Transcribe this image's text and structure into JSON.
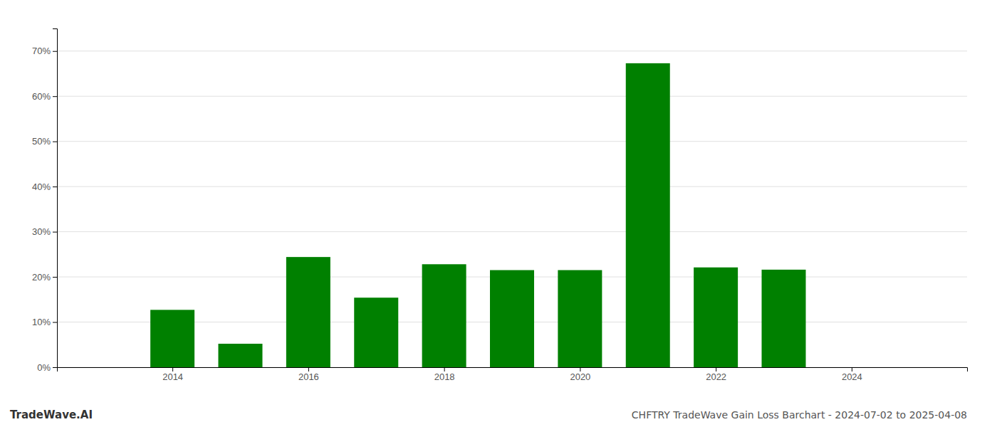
{
  "chart_data": {
    "type": "bar",
    "title": "CHFTRY TradeWave Gain Loss Barchart - 2024-07-02 to 2025-04-08",
    "annotations": [
      "TradeWave.AI"
    ],
    "x": [
      2014,
      2015,
      2016,
      2017,
      2018,
      2019,
      2020,
      2021,
      2022,
      2023
    ],
    "values": [
      0.127,
      0.052,
      0.244,
      0.154,
      0.228,
      0.215,
      0.215,
      0.673,
      0.221,
      0.216
    ],
    "color": "#008000",
    "xlim": [
      2012.3,
      2025.7
    ],
    "xticks": [
      2014,
      2016,
      2018,
      2020,
      2022,
      2024
    ],
    "ylim": [
      0,
      0.75
    ],
    "yticks": [
      {
        "value": 0.0,
        "label": "0%"
      },
      {
        "value": 0.1,
        "label": "10%"
      },
      {
        "value": 0.2,
        "label": "20%"
      },
      {
        "value": 0.3,
        "label": "30%"
      },
      {
        "value": 0.4,
        "label": "40%"
      },
      {
        "value": 0.5,
        "label": "50%"
      },
      {
        "value": 0.6,
        "label": "60%"
      },
      {
        "value": 0.7,
        "label": "70%"
      }
    ],
    "grid": true
  }
}
